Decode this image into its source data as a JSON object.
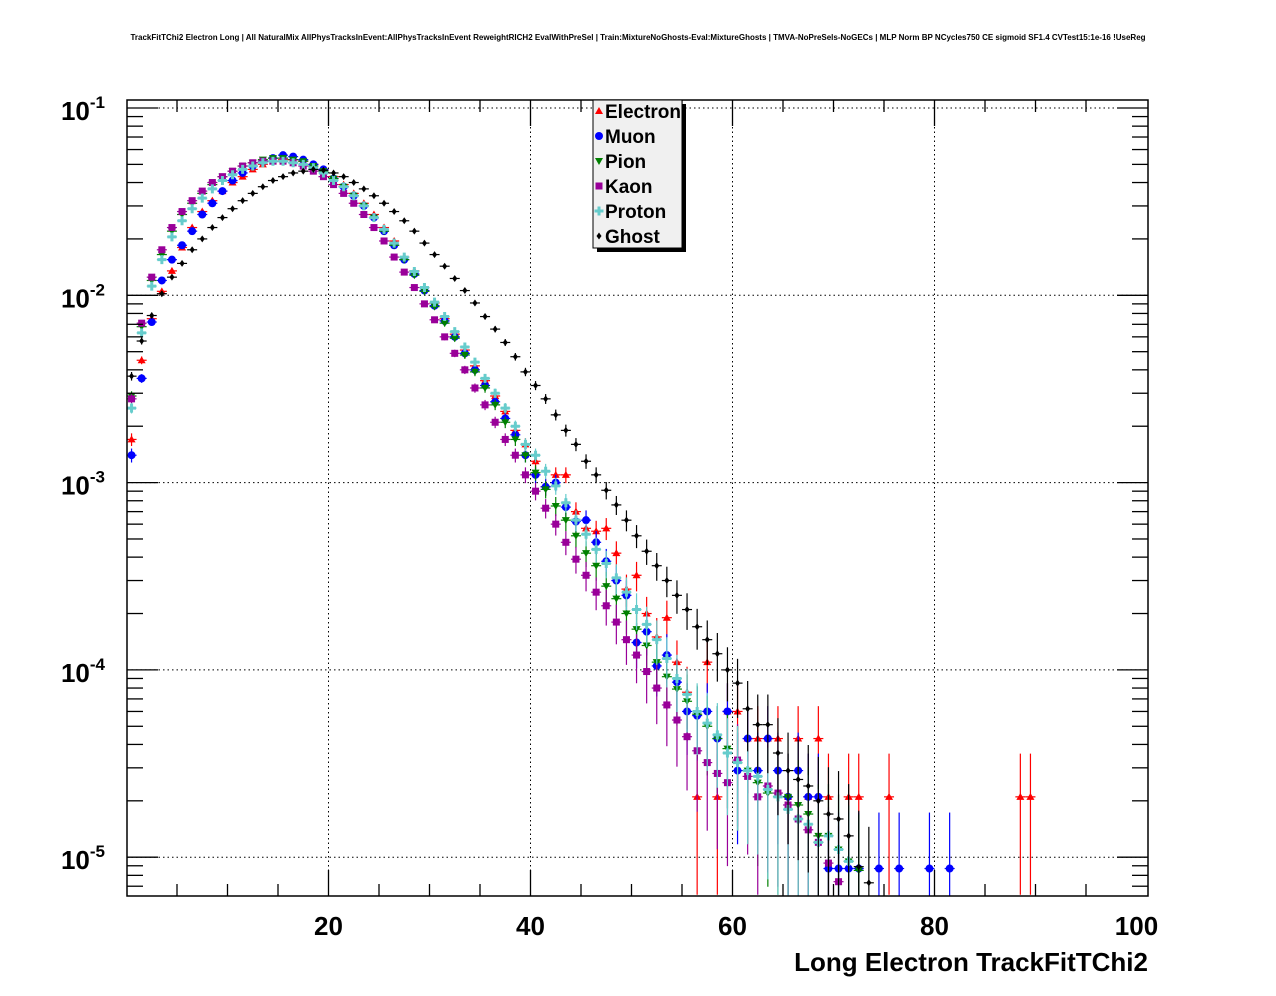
{
  "chart_data": {
    "type": "scatter",
    "title": "TrackFitTChi2 Electron Long | All NaturalMix AllPhysTracksInEvent:AllPhysTracksInEvent ReweightRICH2 EvalWithPreSel | Train:MixtureNoGhosts-Eval:MixtureGhosts | TMVA-NoPreSels-NoGECs | MLP Norm BP NCycles750 CE sigmoid SF1.4 CVTest15:1e-16 !UseReg",
    "xlabel": "Long Electron TrackFitTChi2",
    "ylabel": "",
    "xlim": [
      0,
      100
    ],
    "ylim": [
      6.5e-06,
      0.105
    ],
    "yscale": "log",
    "grid": true,
    "legend_position": "top-center",
    "x_ticks": [
      {
        "value": 20,
        "label": "20"
      },
      {
        "value": 40,
        "label": "40"
      },
      {
        "value": 60,
        "label": "60"
      },
      {
        "value": 80,
        "label": "80"
      },
      {
        "value": 100,
        "label": "100"
      }
    ],
    "y_ticks": [
      {
        "value": 0.1,
        "base": "10",
        "exp": "-1"
      },
      {
        "value": 0.01,
        "base": "10",
        "exp": "-2"
      },
      {
        "value": 0.001,
        "base": "10",
        "exp": "-3"
      },
      {
        "value": 0.0001,
        "base": "10",
        "exp": "-4"
      },
      {
        "value": 1e-05,
        "base": "10",
        "exp": "-5"
      }
    ],
    "series": [
      {
        "name": "Electron",
        "color": "#ff0000",
        "marker": "triangle-up",
        "x": [
          0.5,
          1.5,
          2.5,
          3.5,
          4.5,
          5.5,
          6.5,
          7.5,
          8.5,
          9.5,
          10.5,
          11.5,
          12.5,
          13.5,
          14.5,
          15.5,
          16.5,
          17.5,
          18.5,
          19.5,
          20.5,
          21.5,
          22.5,
          23.5,
          24.5,
          25.5,
          26.5,
          27.5,
          28.5,
          29.5,
          30.5,
          31.5,
          32.5,
          33.5,
          34.5,
          35.5,
          36.5,
          37.5,
          38.5,
          39.5,
          40.5,
          41.5,
          42.5,
          43.5,
          44.5,
          45.5,
          46.5,
          47.5,
          48.5,
          49.5,
          50.5,
          51.5,
          52.5,
          53.5,
          54.5,
          55.5,
          56.5,
          57.5,
          58.5,
          59.5,
          60.5,
          61.5,
          62.5,
          63.5,
          64.5,
          65.5,
          66.5,
          67.5,
          68.5,
          69.5,
          71.5,
          72.5,
          75.5,
          88.5,
          89.5
        ],
        "y": [
          0.0017,
          0.0045,
          0.0075,
          0.0105,
          0.0135,
          0.018,
          0.023,
          0.028,
          0.032,
          0.036,
          0.04,
          0.043,
          0.047,
          0.05,
          0.052,
          0.053,
          0.053,
          0.052,
          0.05,
          0.047,
          0.043,
          0.039,
          0.035,
          0.031,
          0.027,
          0.023,
          0.0195,
          0.016,
          0.0135,
          0.011,
          0.0091,
          0.0075,
          0.0062,
          0.0051,
          0.0042,
          0.0035,
          0.0029,
          0.0024,
          0.0019,
          0.0016,
          0.0013,
          0.00095,
          0.0011,
          0.0011,
          0.0007,
          0.00057,
          0.00055,
          0.00057,
          0.00042,
          0.00027,
          0.00032,
          0.0002,
          0.00015,
          0.00019,
          0.00011,
          7.6e-05,
          2.1e-05,
          0.00011,
          2.1e-05,
          6e-05,
          6e-05,
          4.3e-05,
          4.3e-05,
          4.3e-05,
          4.3e-05,
          2.1e-05,
          4.3e-05,
          2.1e-05,
          4.3e-05,
          2.1e-05,
          2.1e-05,
          2.1e-05,
          2.1e-05,
          2.1e-05,
          2.1e-05
        ]
      },
      {
        "name": "Muon",
        "color": "#0000ff",
        "marker": "circle",
        "x": [
          0.5,
          1.5,
          2.5,
          3.5,
          4.5,
          5.5,
          6.5,
          7.5,
          8.5,
          9.5,
          10.5,
          11.5,
          12.5,
          13.5,
          14.5,
          15.5,
          16.5,
          17.5,
          18.5,
          19.5,
          20.5,
          21.5,
          22.5,
          23.5,
          24.5,
          25.5,
          26.5,
          27.5,
          28.5,
          29.5,
          30.5,
          31.5,
          32.5,
          33.5,
          34.5,
          35.5,
          36.5,
          37.5,
          38.5,
          39.5,
          40.5,
          41.5,
          42.5,
          43.5,
          44.5,
          45.5,
          46.5,
          47.5,
          48.5,
          49.5,
          50.5,
          51.5,
          52.5,
          53.5,
          54.5,
          55.5,
          56.5,
          57.5,
          58.5,
          59.5,
          60.5,
          61.5,
          62.5,
          63.5,
          64.5,
          65.5,
          66.5,
          67.5,
          68.5,
          69.5,
          70.5,
          71.5,
          72.5,
          74.5,
          76.5,
          79.5,
          81.5
        ],
        "y": [
          0.0014,
          0.0036,
          0.0072,
          0.012,
          0.0155,
          0.0185,
          0.022,
          0.027,
          0.031,
          0.036,
          0.041,
          0.045,
          0.049,
          0.052,
          0.054,
          0.056,
          0.055,
          0.053,
          0.05,
          0.047,
          0.042,
          0.038,
          0.034,
          0.03,
          0.026,
          0.022,
          0.0185,
          0.0155,
          0.013,
          0.0106,
          0.0088,
          0.0073,
          0.006,
          0.0049,
          0.004,
          0.0033,
          0.0027,
          0.0022,
          0.0018,
          0.0014,
          0.0011,
          0.00095,
          0.001,
          0.00074,
          0.00062,
          0.00063,
          0.00048,
          0.00038,
          0.0003,
          0.00025,
          0.00014,
          0.00016,
          0.000105,
          0.00012,
          8.6e-05,
          6e-05,
          5.7e-05,
          6e-05,
          4.3e-05,
          6e-05,
          2.9e-05,
          4.3e-05,
          2.9e-05,
          4.3e-05,
          2.9e-05,
          2.1e-05,
          2.9e-05,
          2.1e-05,
          2.1e-05,
          8.7e-06,
          8.7e-06,
          8.7e-06,
          8.7e-06,
          8.7e-06,
          8.7e-06,
          8.7e-06,
          8.7e-06
        ]
      },
      {
        "name": "Pion",
        "color": "#008000",
        "marker": "triangle-down",
        "x": [
          0.5,
          1.5,
          2.5,
          3.5,
          4.5,
          5.5,
          6.5,
          7.5,
          8.5,
          9.5,
          10.5,
          11.5,
          12.5,
          13.5,
          14.5,
          15.5,
          16.5,
          17.5,
          18.5,
          19.5,
          20.5,
          21.5,
          22.5,
          23.5,
          24.5,
          25.5,
          26.5,
          27.5,
          28.5,
          29.5,
          30.5,
          31.5,
          32.5,
          33.5,
          34.5,
          35.5,
          36.5,
          37.5,
          38.5,
          39.5,
          40.5,
          41.5,
          42.5,
          43.5,
          44.5,
          45.5,
          46.5,
          47.5,
          48.5,
          49.5,
          50.5,
          51.5,
          52.5,
          53.5,
          54.5,
          55.5,
          56.5,
          57.5,
          58.5,
          59.5,
          60.5,
          61.5,
          62.5,
          63.5,
          64.5,
          65.5,
          66.5,
          67.5,
          68.5,
          69.5,
          70.5,
          71.5,
          72.5
        ],
        "y": [
          0.0029,
          0.0068,
          0.012,
          0.0165,
          0.022,
          0.027,
          0.031,
          0.035,
          0.039,
          0.043,
          0.046,
          0.049,
          0.051,
          0.053,
          0.054,
          0.054,
          0.053,
          0.052,
          0.049,
          0.046,
          0.042,
          0.038,
          0.034,
          0.03,
          0.026,
          0.022,
          0.0185,
          0.0155,
          0.0128,
          0.0105,
          0.0087,
          0.0071,
          0.0059,
          0.0048,
          0.0039,
          0.0032,
          0.0026,
          0.0021,
          0.0017,
          0.0014,
          0.00113,
          0.00092,
          0.00075,
          0.00063,
          0.00052,
          0.00042,
          0.00036,
          0.00028,
          0.00024,
          0.0002,
          0.000165,
          0.000135,
          0.00011,
          9.2e-05,
          7.9e-05,
          6.8e-05,
          5.8e-05,
          5e-05,
          4.3e-05,
          3.8e-05,
          3.2e-05,
          2.9e-05,
          2.5e-05,
          2.2e-05,
          2.1e-05,
          2.1e-05,
          1.9e-05,
          1.7e-05,
          1.3e-05,
          1.3e-05,
          1.1e-05,
          9.5e-06,
          8.5e-06
        ]
      },
      {
        "name": "Kaon",
        "color": "#990099",
        "marker": "square",
        "x": [
          0.5,
          1.5,
          2.5,
          3.5,
          4.5,
          5.5,
          6.5,
          7.5,
          8.5,
          9.5,
          10.5,
          11.5,
          12.5,
          13.5,
          14.5,
          15.5,
          16.5,
          17.5,
          18.5,
          19.5,
          20.5,
          21.5,
          22.5,
          23.5,
          24.5,
          25.5,
          26.5,
          27.5,
          28.5,
          29.5,
          30.5,
          31.5,
          32.5,
          33.5,
          34.5,
          35.5,
          36.5,
          37.5,
          38.5,
          39.5,
          40.5,
          41.5,
          42.5,
          43.5,
          44.5,
          45.5,
          46.5,
          47.5,
          48.5,
          49.5,
          50.5,
          51.5,
          52.5,
          53.5,
          54.5,
          55.5,
          56.5,
          57.5,
          58.5,
          59.5,
          60.5,
          61.5,
          62.5,
          63.5,
          64.5,
          65.5,
          66.5,
          67.5,
          68.5,
          69.5,
          70.5
        ],
        "y": [
          0.0028,
          0.0071,
          0.0125,
          0.0175,
          0.023,
          0.028,
          0.032,
          0.036,
          0.04,
          0.043,
          0.046,
          0.049,
          0.051,
          0.052,
          0.052,
          0.052,
          0.051,
          0.049,
          0.046,
          0.043,
          0.039,
          0.035,
          0.031,
          0.027,
          0.023,
          0.0195,
          0.016,
          0.0133,
          0.011,
          0.009,
          0.0074,
          0.006,
          0.0049,
          0.004,
          0.0032,
          0.0026,
          0.0021,
          0.0017,
          0.0014,
          0.0011,
          0.0009,
          0.00073,
          0.0006,
          0.00048,
          0.00039,
          0.00032,
          0.00026,
          0.00022,
          0.00018,
          0.000145,
          0.00012,
          9.8e-05,
          8e-05,
          6.5e-05,
          5.4e-05,
          4.4e-05,
          3.7e-05,
          3.2e-05,
          2.8e-05,
          2.5e-05,
          3.3e-05,
          2.7e-05,
          2.1e-05,
          2.4e-05,
          2.2e-05,
          1.9e-05,
          1.6e-05,
          1.4e-05,
          1.2e-05,
          9.3e-06,
          7.4e-06
        ]
      },
      {
        "name": "Proton",
        "color": "#66cccc",
        "marker": "cross",
        "x": [
          0.5,
          1.5,
          2.5,
          3.5,
          4.5,
          5.5,
          6.5,
          7.5,
          8.5,
          9.5,
          10.5,
          11.5,
          12.5,
          13.5,
          14.5,
          15.5,
          16.5,
          17.5,
          18.5,
          19.5,
          20.5,
          21.5,
          22.5,
          23.5,
          24.5,
          25.5,
          26.5,
          27.5,
          28.5,
          29.5,
          30.5,
          31.5,
          32.5,
          33.5,
          34.5,
          35.5,
          36.5,
          37.5,
          38.5,
          39.5,
          40.5,
          41.5,
          42.5,
          43.5,
          44.5,
          45.5,
          46.5,
          47.5,
          48.5,
          49.5,
          50.5,
          51.5,
          52.5,
          53.5,
          54.5,
          55.5,
          56.5,
          57.5,
          58.5,
          59.5,
          60.5,
          61.5,
          62.5,
          63.5,
          64.5,
          65.5,
          66.5,
          67.5,
          68.5,
          69.5,
          70.5,
          71.5
        ],
        "y": [
          0.0025,
          0.0063,
          0.0112,
          0.0155,
          0.0205,
          0.025,
          0.029,
          0.033,
          0.037,
          0.041,
          0.044,
          0.047,
          0.049,
          0.051,
          0.052,
          0.052,
          0.051,
          0.05,
          0.048,
          0.045,
          0.041,
          0.038,
          0.034,
          0.03,
          0.026,
          0.0225,
          0.019,
          0.016,
          0.0134,
          0.011,
          0.0092,
          0.0077,
          0.0064,
          0.0053,
          0.0044,
          0.0036,
          0.003,
          0.0025,
          0.002,
          0.0016,
          0.0014,
          0.00115,
          0.00096,
          0.00078,
          0.00063,
          0.00053,
          0.00044,
          0.00037,
          0.00031,
          0.00026,
          0.00021,
          0.000175,
          0.000145,
          0.000115,
          9e-05,
          7.4e-05,
          6e-05,
          5.2e-05,
          4.5e-05,
          3.6e-05,
          3.2e-05,
          2.9e-05,
          2.7e-05,
          2.3e-05,
          2.1e-05,
          1.8e-05,
          1.6e-05,
          1.5e-05,
          1.2e-05,
          1.3e-05,
          1.1e-05,
          9.5e-06
        ]
      },
      {
        "name": "Ghost",
        "color": "#000000",
        "marker": "diamond",
        "x": [
          0.5,
          1.5,
          2.5,
          3.5,
          4.5,
          5.5,
          6.5,
          7.5,
          8.5,
          9.5,
          10.5,
          11.5,
          12.5,
          13.5,
          14.5,
          15.5,
          16.5,
          17.5,
          18.5,
          19.5,
          20.5,
          21.5,
          22.5,
          23.5,
          24.5,
          25.5,
          26.5,
          27.5,
          28.5,
          29.5,
          30.5,
          31.5,
          32.5,
          33.5,
          34.5,
          35.5,
          36.5,
          37.5,
          38.5,
          39.5,
          40.5,
          41.5,
          42.5,
          43.5,
          44.5,
          45.5,
          46.5,
          47.5,
          48.5,
          49.5,
          50.5,
          51.5,
          52.5,
          53.5,
          54.5,
          55.5,
          56.5,
          57.5,
          58.5,
          59.5,
          60.5,
          61.5,
          62.5,
          63.5,
          64.5,
          65.5,
          66.5,
          67.5,
          68.5,
          69.5,
          70.5,
          71.5,
          72.5,
          73.5
        ],
        "y": [
          0.0037,
          0.0057,
          0.0078,
          0.0102,
          0.0125,
          0.0148,
          0.0175,
          0.02,
          0.023,
          0.026,
          0.029,
          0.032,
          0.035,
          0.038,
          0.041,
          0.043,
          0.045,
          0.046,
          0.047,
          0.0465,
          0.045,
          0.043,
          0.04,
          0.037,
          0.034,
          0.031,
          0.028,
          0.025,
          0.022,
          0.019,
          0.0165,
          0.0143,
          0.0123,
          0.0106,
          0.0091,
          0.0077,
          0.0066,
          0.0056,
          0.0047,
          0.0039,
          0.0033,
          0.0028,
          0.0023,
          0.0019,
          0.0016,
          0.0013,
          0.0011,
          0.00091,
          0.00076,
          0.00063,
          0.00052,
          0.00043,
          0.00036,
          0.0003,
          0.00025,
          0.00021,
          0.00017,
          0.000145,
          0.000122,
          0.0001,
          8.5e-05,
          6.2e-05,
          5.1e-05,
          5.1e-05,
          3.6e-05,
          2.9e-05,
          2.6e-05,
          2.4e-05,
          2e-05,
          1.7e-05,
          1.6e-05,
          1.3e-05,
          8.9e-06,
          7.3e-06
        ]
      }
    ]
  }
}
